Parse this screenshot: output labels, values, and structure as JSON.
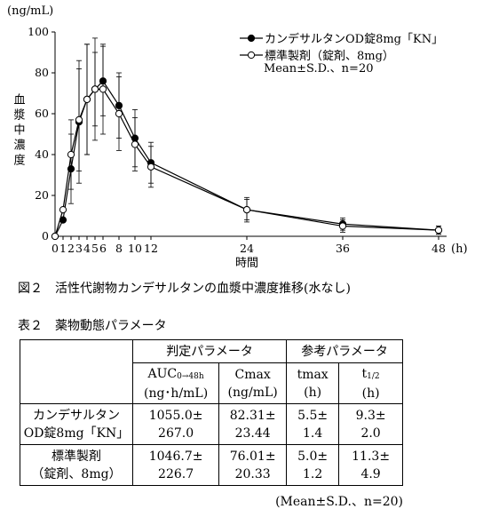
{
  "chart_data": {
    "type": "line",
    "y_unit": "(ng/mL)",
    "ylabel": "血漿中濃度",
    "xlabel": "時間",
    "x_unit": "(h)",
    "x": [
      0,
      1,
      2,
      3,
      4,
      5,
      6,
      8,
      10,
      12,
      24,
      36,
      48
    ],
    "series": [
      {
        "name": "カンデサルタンOD錠8mg「KN」",
        "color": "#000000",
        "marker": "filled",
        "values": [
          0,
          8,
          33,
          56,
          67,
          72,
          76,
          64,
          48,
          36,
          13,
          6,
          3
        ],
        "errors": [
          0,
          0,
          17,
          30,
          27,
          18,
          17,
          16,
          14,
          10,
          6,
          3,
          2
        ]
      },
      {
        "name": "標準製剤（錠剤、8mg）",
        "color": "#000000",
        "marker": "open",
        "values": [
          0,
          13,
          40,
          57,
          67,
          72,
          72,
          60,
          45,
          34,
          13,
          5,
          3
        ],
        "errors": [
          0,
          0,
          17,
          25,
          27,
          25,
          22,
          18,
          13,
          10,
          5,
          3,
          2
        ]
      }
    ],
    "annotation": "Mean±S.D.、n=20",
    "xlim": [
      0,
      49
    ],
    "ylim": [
      0,
      100
    ],
    "xticks": [
      0,
      1,
      2,
      3,
      4,
      5,
      6,
      8,
      10,
      12,
      24,
      36,
      48
    ],
    "yticks": [
      0,
      20,
      40,
      60,
      80,
      100
    ]
  },
  "caption": "図２　活性代謝物カンデサルタンの血漿中濃度推移(水なし)",
  "table": {
    "title": "表２　薬物動態パラメータ",
    "groups": [
      "判定パラメータ",
      "参考パラメータ"
    ],
    "columns": [
      {
        "name": "AUC",
        "sub": "0→48h",
        "unit": "(ng･h/mL)"
      },
      {
        "name": "Cmax",
        "sub": null,
        "unit": "(ng/mL)"
      },
      {
        "name": "tmax",
        "sub": null,
        "unit": "(h)"
      },
      {
        "name": "t",
        "sub": "1/2",
        "unit": "(h)"
      }
    ],
    "rows": [
      {
        "label": [
          "カンデサルタン",
          "OD錠8mg「KN」"
        ],
        "cells": [
          [
            "1055.0±",
            "267.0"
          ],
          [
            "82.31±",
            "23.44"
          ],
          [
            "5.5±",
            "1.4"
          ],
          [
            "9.3±",
            "2.0"
          ]
        ]
      },
      {
        "label": [
          "標準製剤",
          "（錠剤、8mg）"
        ],
        "cells": [
          [
            "1046.7±",
            "226.7"
          ],
          [
            "76.01±",
            "20.33"
          ],
          [
            "5.0±",
            "1.2"
          ],
          [
            "11.3±",
            "4.9"
          ]
        ]
      }
    ],
    "footnote": "(Mean±S.D.、n=20)"
  }
}
